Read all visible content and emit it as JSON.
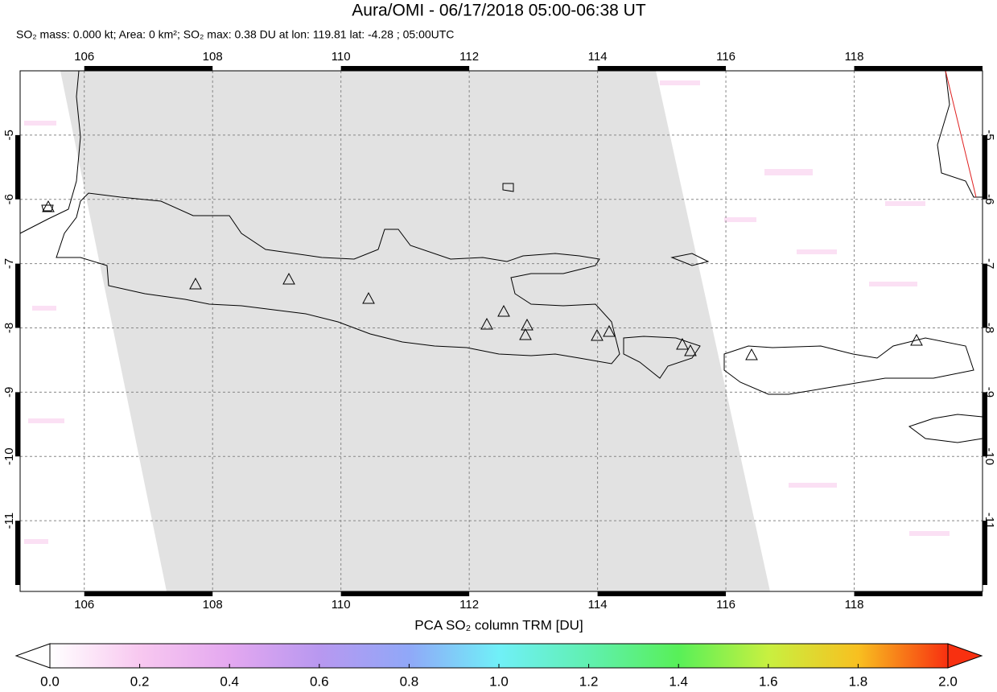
{
  "chart_data": {
    "type": "map",
    "title": "Aura/OMI - 06/17/2018 05:00-06:38 UT",
    "subtitle": "SO₂ mass: 0.000 kt; Area: 0 km²; SO₂ max: 0.38 DU at lon: 119.81 lat: -4.28 ; 05:00UTC",
    "xlim": [
      105,
      120
    ],
    "ylim": [
      -12.1,
      -4
    ],
    "xticks": [
      106,
      108,
      110,
      112,
      114,
      116,
      118
    ],
    "yticks": [
      -5,
      -6,
      -7,
      -8,
      -9,
      -10,
      -11
    ],
    "grid": true,
    "colorbar": {
      "label": "PCA SO₂ column TRM [DU]",
      "lim": [
        0,
        2
      ],
      "ticks": [
        {
          "value": 0,
          "label": "0.0"
        },
        0.2,
        0.4,
        0.6,
        0.8,
        {
          "value": 1,
          "label": "1.0"
        },
        1.2,
        1.4,
        1.6,
        1.8,
        {
          "value": 2,
          "label": "2.0"
        }
      ],
      "colors": [
        "#ffffff",
        "#f8c8f0",
        "#e4a8f0",
        "#b898f0",
        "#90a8f8",
        "#70f0f8",
        "#60f0b0",
        "#58f058",
        "#c8f040",
        "#f8c020",
        "#f83010"
      ]
    }
  }
}
